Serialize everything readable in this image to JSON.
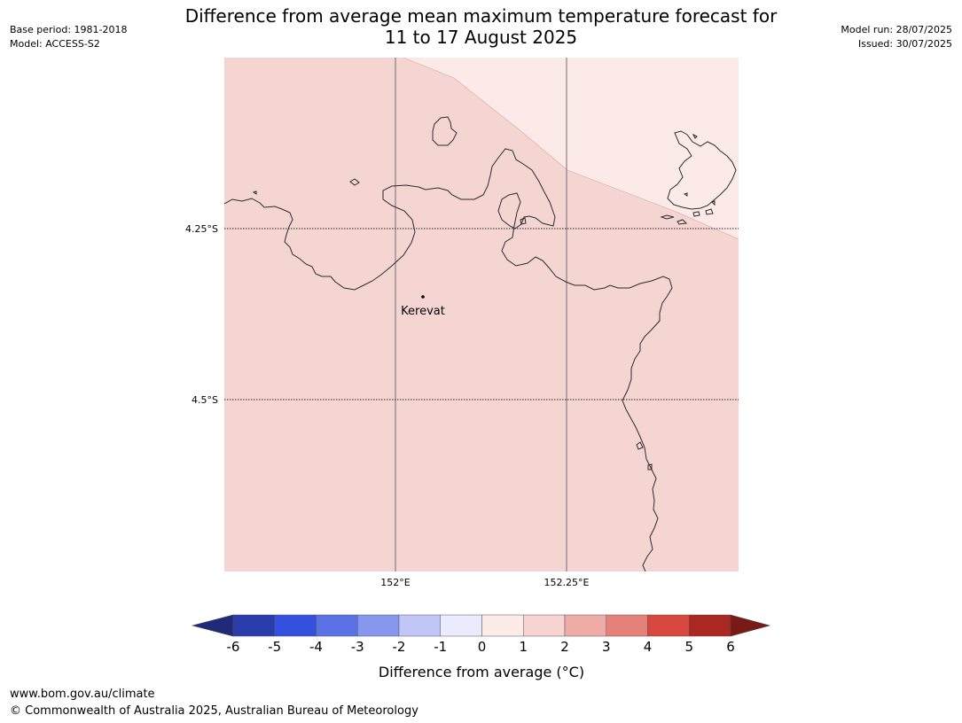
{
  "title_line1": "Difference from average mean maximum temperature forecast for",
  "title_line2": "11 to 17 August 2025",
  "meta_left": {
    "base_period": "Base period: 1981-2018",
    "model": "Model: ACCESS-S2"
  },
  "meta_right": {
    "model_run": "Model run: 28/07/2025",
    "issued": "Issued: 30/07/2025"
  },
  "map": {
    "lat_labels": [
      "4.25°S",
      "4.5°S"
    ],
    "lon_labels": [
      "152°E",
      "152.25°E"
    ],
    "place": {
      "name": "Kerevat"
    },
    "colors": {
      "anomaly_1_2": "#f5d5d2",
      "anomaly_0_1": "#fbeae8",
      "coastline": "#2b2b2b"
    }
  },
  "colorbar": {
    "label": "Difference from average (°C)",
    "ticks": [
      "-6",
      "-5",
      "-4",
      "-3",
      "-2",
      "-1",
      "0",
      "1",
      "2",
      "3",
      "4",
      "5",
      "6"
    ],
    "under_color": "#1f2b7a",
    "over_color": "#7a1a17",
    "colors": [
      "#2a3bab",
      "#3351de",
      "#5b72e6",
      "#8797ee",
      "#c1c6f6",
      "#eaebfc",
      "#fcebe9",
      "#f5d4d1",
      "#efaca7",
      "#e6817a",
      "#d9483e",
      "#ab2721"
    ]
  },
  "footer": {
    "url": "www.bom.gov.au/climate",
    "copyright": "© Commonwealth of Australia 2025, Australian Bureau of Meteorology"
  }
}
